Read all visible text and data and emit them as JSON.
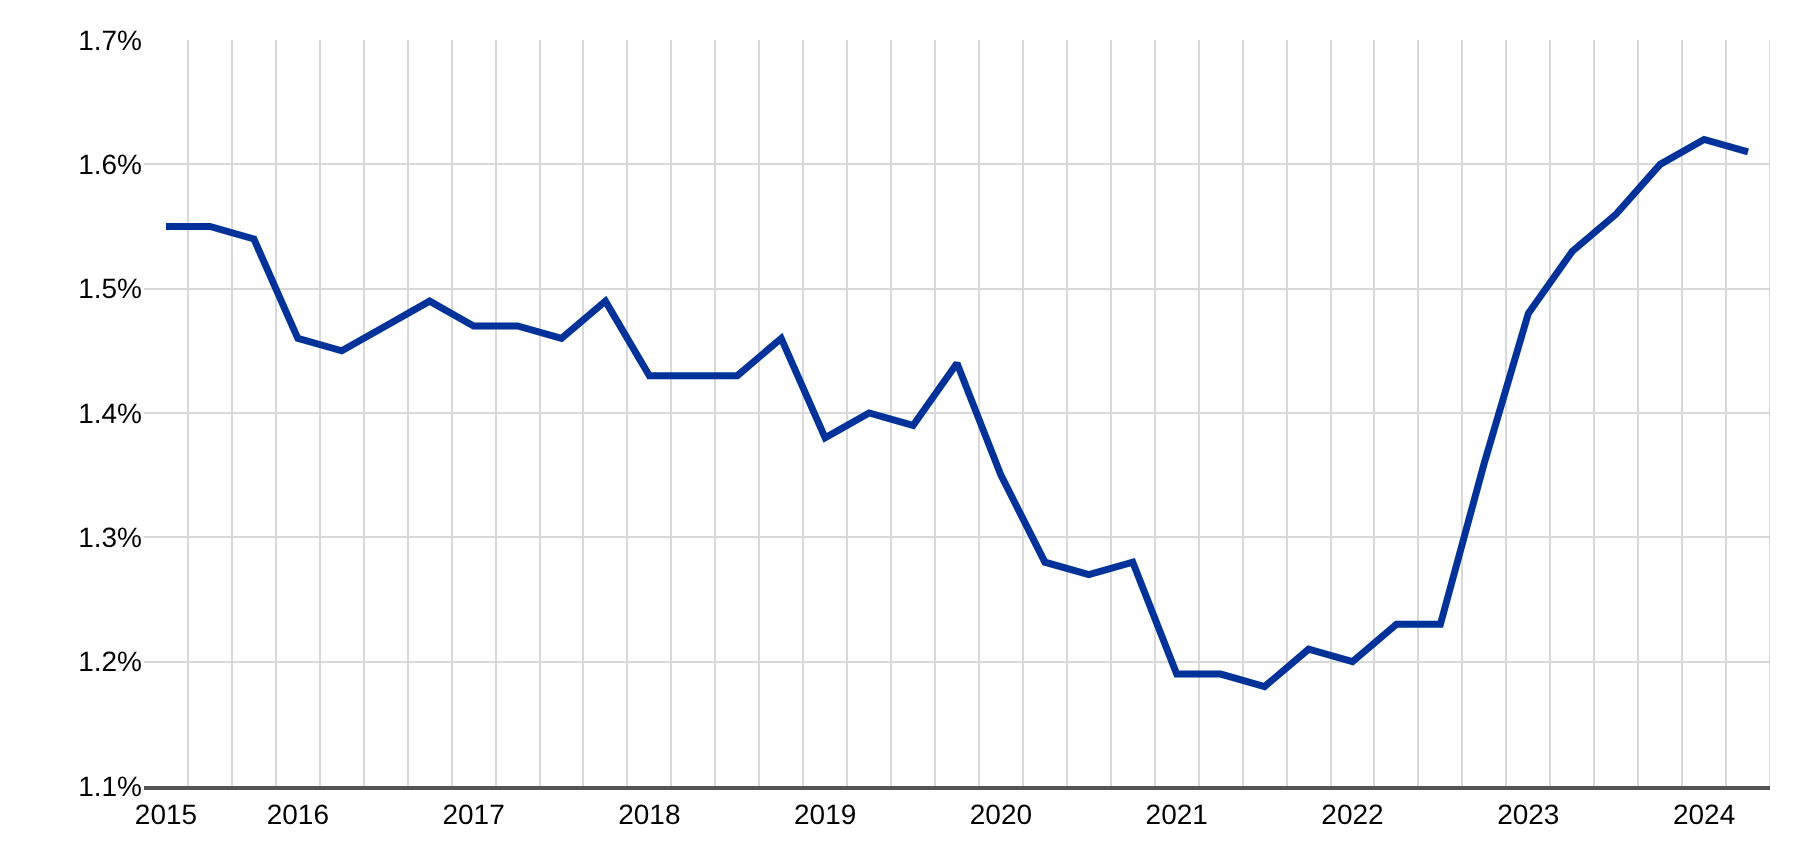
{
  "chart_data": {
    "type": "line",
    "categories": [
      "2015",
      null,
      null,
      "2016",
      null,
      null,
      null,
      "2017",
      null,
      null,
      null,
      "2018",
      null,
      null,
      null,
      "2019",
      null,
      null,
      null,
      "2020",
      null,
      null,
      null,
      "2021",
      null,
      null,
      null,
      "2022",
      null,
      null,
      null,
      "2023",
      null,
      null,
      null,
      "2024",
      null
    ],
    "series": [
      {
        "color": "#003299",
        "values": [
          1.55,
          1.55,
          1.54,
          1.46,
          1.45,
          1.47,
          1.49,
          1.47,
          1.47,
          1.46,
          1.49,
          1.43,
          1.43,
          1.43,
          1.46,
          1.38,
          1.4,
          1.39,
          1.44,
          1.35,
          1.28,
          1.27,
          1.28,
          1.19,
          1.19,
          1.18,
          1.21,
          1.2,
          1.23,
          1.23,
          1.36,
          1.48,
          1.53,
          1.56,
          1.6,
          1.62,
          1.61
        ]
      }
    ],
    "ylim": [
      1.1,
      1.7
    ],
    "yticks": [
      {
        "value": 1.1,
        "label": "1.1%"
      },
      {
        "value": 1.2,
        "label": "1.2%"
      },
      {
        "value": 1.3,
        "label": "1.3%"
      },
      {
        "value": 1.4,
        "label": "1.4%"
      },
      {
        "value": 1.5,
        "label": "1.5%"
      },
      {
        "value": 1.6,
        "label": "1.6%"
      },
      {
        "value": 1.7,
        "label": "1.7%"
      }
    ],
    "grid": true,
    "legend": false,
    "marker": "none",
    "line_style": "solid"
  }
}
